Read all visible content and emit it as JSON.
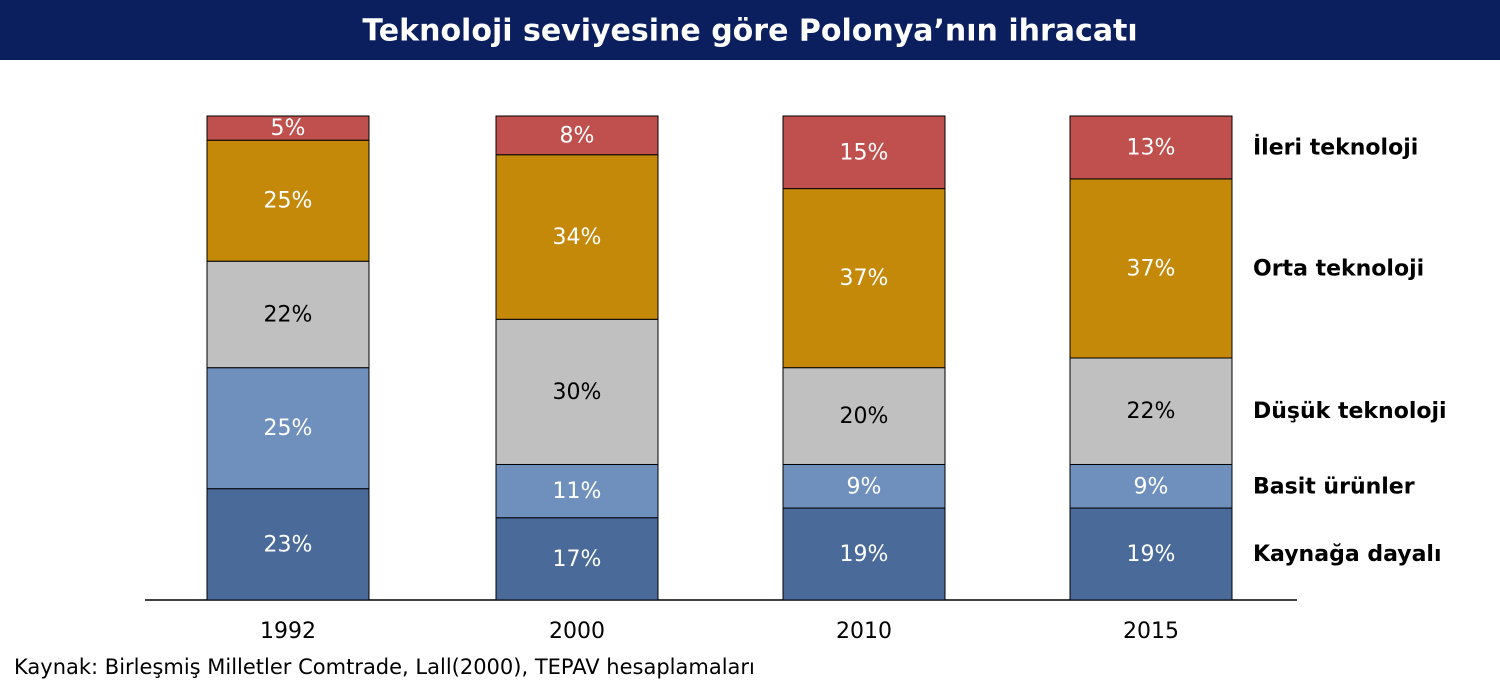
{
  "chart_data": {
    "type": "stacked_bar",
    "title": "Teknoloji seviyesine göre Polonya’nın ihracatı",
    "categories": [
      "1992",
      "2000",
      "2010",
      "2015"
    ],
    "series": [
      {
        "name": "Kaynağa dayalı",
        "color": "#4a6a9a",
        "values": [
          23,
          17,
          19,
          19
        ],
        "value_labels": [
          "23%",
          "17%",
          "19%",
          "19%"
        ]
      },
      {
        "name": "Basit ürünler",
        "color": "#6f8fbd",
        "values": [
          25,
          11,
          9,
          9
        ],
        "value_labels": [
          "25%",
          "11%",
          "9%",
          "9%"
        ]
      },
      {
        "name": "Düşük teknoloji",
        "color": "#c0c0c0",
        "values": [
          22,
          30,
          20,
          22
        ],
        "value_labels": [
          "22%",
          "30%",
          "20%",
          "22%"
        ]
      },
      {
        "name": "Orta teknoloji",
        "color": "#c5890a",
        "values": [
          25,
          34,
          37,
          37
        ],
        "value_labels": [
          "25%",
          "34%",
          "37%",
          "37%"
        ]
      },
      {
        "name": "İleri teknoloji",
        "color": "#c0504d",
        "values": [
          5,
          8,
          15,
          13
        ],
        "value_labels": [
          "5%",
          "8%",
          "15%",
          "13%"
        ]
      }
    ],
    "ylim": [
      0,
      100
    ],
    "source": "Kaynak: Birleşmiş Milletler Comtrade, Lall(2000), TEPAV hesaplamaları"
  }
}
